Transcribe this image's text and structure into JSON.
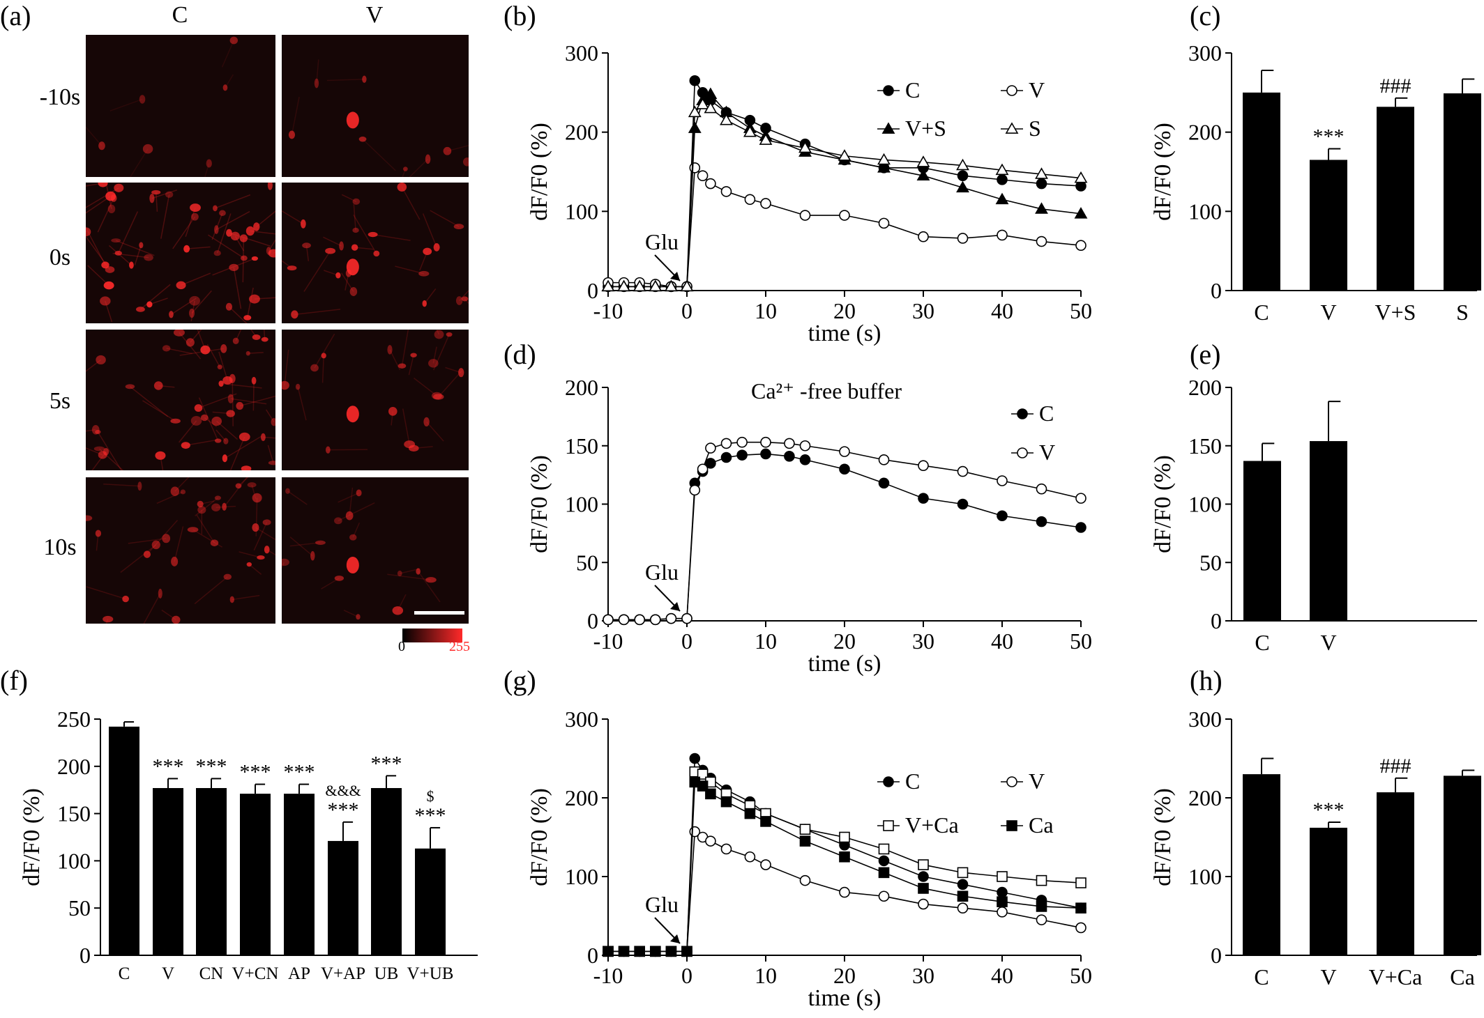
{
  "figure": {
    "panel_letters": [
      "(a)",
      "(b)",
      "(c)",
      "(d)",
      "(e)",
      "(f)",
      "(g)",
      "(h)"
    ]
  },
  "panel_a": {
    "column_labels": [
      "C",
      "V"
    ],
    "row_labels": [
      "-10s",
      "0s",
      "5s",
      "10s"
    ],
    "colorbar": {
      "min_label": "0",
      "max_label": "255",
      "colors": [
        "#000000",
        "#ff2a2a"
      ]
    }
  },
  "colors": {
    "bar_fill": "#000000",
    "marker_open_fill": "#ffffff",
    "fluor_red": "#ff2a2a"
  },
  "chart_data": [
    {
      "id": "b",
      "type": "line",
      "xlabel": "time (s)",
      "ylabel": "dF/F0 (%)",
      "xlim": [
        -10,
        50
      ],
      "ylim": [
        0,
        300
      ],
      "xticks": [
        -10,
        0,
        10,
        20,
        30,
        40,
        50
      ],
      "yticks": [
        0,
        100,
        200,
        300
      ],
      "annotation": "Glu",
      "legend": "top-right",
      "series": [
        {
          "name": "C",
          "marker": "circle-filled",
          "x": [
            -10,
            -8,
            -6,
            -4,
            -2,
            0,
            1,
            2,
            3,
            5,
            8,
            10,
            15,
            20,
            25,
            30,
            35,
            40,
            45,
            50
          ],
          "y": [
            5,
            5,
            5,
            5,
            5,
            5,
            265,
            250,
            240,
            225,
            215,
            205,
            185,
            165,
            155,
            155,
            145,
            140,
            135,
            132
          ]
        },
        {
          "name": "V",
          "marker": "circle-open",
          "x": [
            -10,
            -8,
            -6,
            -4,
            -2,
            0,
            1,
            2,
            3,
            5,
            8,
            10,
            15,
            20,
            25,
            30,
            35,
            40,
            45,
            50
          ],
          "y": [
            10,
            10,
            10,
            8,
            5,
            5,
            155,
            145,
            135,
            125,
            115,
            110,
            95,
            95,
            85,
            68,
            66,
            70,
            62,
            57
          ]
        },
        {
          "name": "V+S",
          "marker": "triangle-filled",
          "x": [
            -10,
            -8,
            -6,
            -4,
            -2,
            0,
            1,
            2,
            3,
            5,
            8,
            10,
            15,
            20,
            25,
            30,
            35,
            40,
            45,
            50
          ],
          "y": [
            5,
            5,
            5,
            5,
            5,
            5,
            205,
            240,
            248,
            225,
            205,
            195,
            175,
            165,
            155,
            145,
            130,
            115,
            103,
            97
          ]
        },
        {
          "name": "S",
          "marker": "triangle-open",
          "x": [
            -10,
            -8,
            -6,
            -4,
            -2,
            0,
            1,
            2,
            3,
            5,
            8,
            10,
            15,
            20,
            25,
            30,
            35,
            40,
            45,
            50
          ],
          "y": [
            5,
            5,
            5,
            5,
            5,
            5,
            225,
            235,
            230,
            215,
            200,
            190,
            180,
            170,
            165,
            162,
            158,
            152,
            147,
            142
          ]
        }
      ]
    },
    {
      "id": "c",
      "type": "bar",
      "ylabel": "dF/F0 (%)",
      "ylim": [
        0,
        300
      ],
      "yticks": [
        0,
        100,
        200,
        300
      ],
      "categories": [
        "C",
        "V",
        "V+S",
        "S"
      ],
      "values": [
        250,
        165,
        232,
        249
      ],
      "errors": [
        28,
        14,
        11,
        18
      ],
      "labels": [
        "",
        "***",
        "###",
        ""
      ]
    },
    {
      "id": "d",
      "type": "line",
      "title": "Ca²⁺ -free buffer",
      "xlabel": "time (s)",
      "ylabel": "dF/F0 (%)",
      "xlim": [
        -10,
        50
      ],
      "ylim": [
        0,
        200
      ],
      "xticks": [
        -10,
        0,
        10,
        20,
        30,
        40,
        50
      ],
      "yticks": [
        0,
        50,
        100,
        150,
        200
      ],
      "annotation": "Glu",
      "legend": "top-right",
      "series": [
        {
          "name": "C",
          "marker": "circle-filled",
          "x": [
            -10,
            -8,
            -6,
            -4,
            -2,
            0,
            1,
            2,
            3,
            5,
            7,
            10,
            13,
            15,
            20,
            25,
            30,
            35,
            40,
            45,
            50
          ],
          "y": [
            1,
            1,
            1,
            1,
            2,
            2,
            118,
            128,
            135,
            140,
            142,
            143,
            141,
            138,
            130,
            118,
            105,
            100,
            90,
            85,
            80
          ]
        },
        {
          "name": "V",
          "marker": "circle-open",
          "x": [
            -10,
            -8,
            -6,
            -4,
            -2,
            0,
            1,
            2,
            3,
            5,
            7,
            10,
            13,
            15,
            20,
            25,
            30,
            35,
            40,
            45,
            50
          ],
          "y": [
            1,
            1,
            1,
            1,
            2,
            2,
            112,
            130,
            148,
            152,
            153,
            153,
            152,
            150,
            145,
            138,
            133,
            128,
            120,
            113,
            105
          ]
        }
      ]
    },
    {
      "id": "e",
      "type": "bar",
      "ylabel": "dF/F0 (%)",
      "ylim": [
        0,
        200
      ],
      "yticks": [
        0,
        50,
        100,
        150,
        200
      ],
      "categories": [
        "C",
        "V"
      ],
      "values": [
        137,
        154
      ],
      "errors": [
        15,
        34
      ],
      "labels": [
        "",
        ""
      ]
    },
    {
      "id": "f",
      "type": "bar",
      "ylabel": "dF/F0 (%)",
      "ylim": [
        0,
        250
      ],
      "yticks": [
        0,
        50,
        100,
        150,
        200,
        250
      ],
      "categories": [
        "C",
        "V",
        "CN",
        "V+CN",
        "AP",
        "V+AP",
        "UB",
        "V+UB"
      ],
      "values": [
        242,
        177,
        177,
        171,
        171,
        121,
        177,
        113
      ],
      "errors": [
        5,
        10,
        10,
        10,
        10,
        20,
        13,
        22
      ],
      "labels": [
        "",
        "***",
        "***",
        "***",
        "***",
        "***",
        "***",
        "***"
      ],
      "labels_upper": [
        "",
        "",
        "",
        "",
        "",
        "&&&",
        "",
        "$"
      ]
    },
    {
      "id": "g",
      "type": "line",
      "xlabel": "time (s)",
      "ylabel": "dF/F0 (%)",
      "xlim": [
        -10,
        50
      ],
      "ylim": [
        0,
        300
      ],
      "xticks": [
        -10,
        0,
        10,
        20,
        30,
        40,
        50
      ],
      "yticks": [
        0,
        100,
        200,
        300
      ],
      "annotation": "Glu",
      "legend": "top-right",
      "series": [
        {
          "name": "C",
          "marker": "circle-filled",
          "x": [
            -10,
            -8,
            -6,
            -4,
            -2,
            0,
            1,
            2,
            3,
            5,
            8,
            10,
            15,
            20,
            25,
            30,
            35,
            40,
            45,
            50
          ],
          "y": [
            5,
            5,
            5,
            5,
            5,
            5,
            250,
            235,
            225,
            210,
            195,
            180,
            160,
            140,
            120,
            100,
            90,
            80,
            70,
            60
          ]
        },
        {
          "name": "V",
          "marker": "circle-open",
          "x": [
            -10,
            -8,
            -6,
            -4,
            -2,
            0,
            1,
            2,
            3,
            5,
            8,
            10,
            15,
            20,
            25,
            30,
            35,
            40,
            45,
            50
          ],
          "y": [
            5,
            5,
            5,
            5,
            5,
            5,
            157,
            150,
            145,
            135,
            125,
            115,
            95,
            80,
            75,
            65,
            60,
            55,
            45,
            35
          ]
        },
        {
          "name": "V+Ca",
          "marker": "square-open",
          "x": [
            -10,
            -8,
            -6,
            -4,
            -2,
            0,
            1,
            2,
            3,
            5,
            8,
            10,
            15,
            20,
            25,
            30,
            35,
            40,
            45,
            50
          ],
          "y": [
            5,
            5,
            5,
            5,
            5,
            5,
            233,
            230,
            220,
            205,
            190,
            180,
            160,
            150,
            135,
            115,
            105,
            100,
            95,
            92
          ]
        },
        {
          "name": "Ca",
          "marker": "square-filled",
          "x": [
            -10,
            -8,
            -6,
            -4,
            -2,
            0,
            1,
            2,
            3,
            5,
            8,
            10,
            15,
            20,
            25,
            30,
            35,
            40,
            45,
            50
          ],
          "y": [
            5,
            5,
            5,
            5,
            5,
            5,
            220,
            215,
            205,
            195,
            180,
            170,
            145,
            125,
            105,
            85,
            75,
            68,
            62,
            60
          ]
        }
      ]
    },
    {
      "id": "h",
      "type": "bar",
      "ylabel": "dF/F0 (%)",
      "ylim": [
        0,
        300
      ],
      "yticks": [
        0,
        100,
        200,
        300
      ],
      "categories": [
        "C",
        "V",
        "V+Ca",
        "Ca"
      ],
      "values": [
        230,
        162,
        207,
        228
      ],
      "errors": [
        20,
        7,
        18,
        7
      ],
      "labels": [
        "",
        "***",
        "###",
        ""
      ]
    }
  ]
}
